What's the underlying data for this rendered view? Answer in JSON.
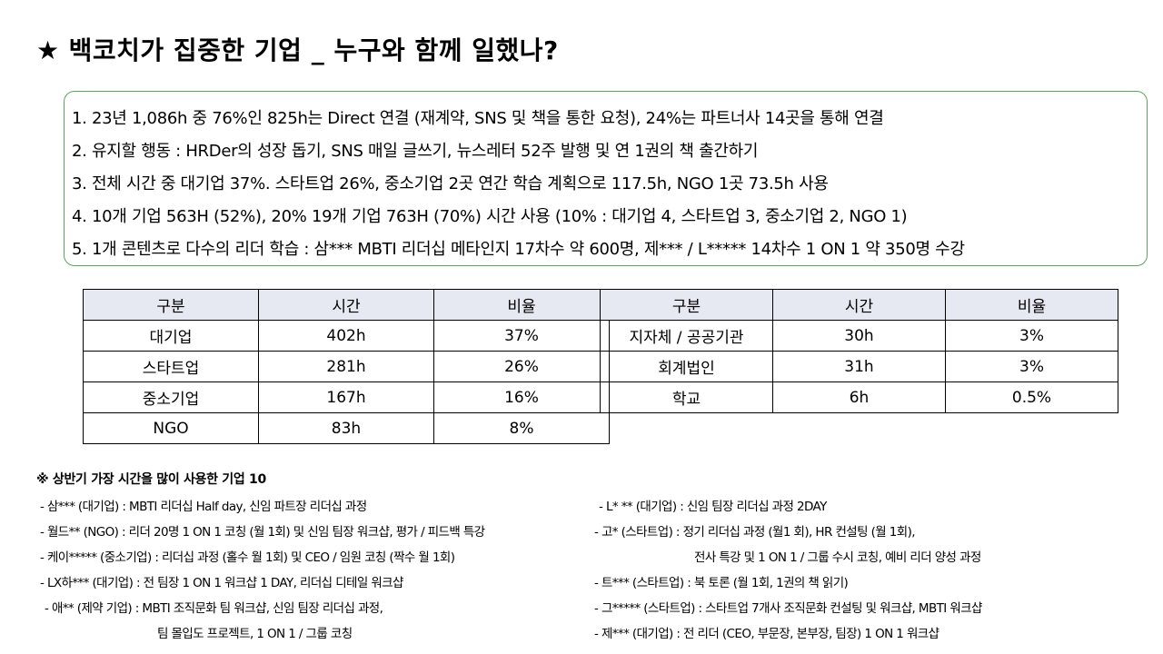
{
  "title": {
    "star": "★",
    "text": "백코치가 집중한 기업 _ 누구와 함께 일했나?"
  },
  "summary": {
    "lines": [
      "1. 23년 1,086h 중 76%인 825h는 Direct 연결 (재계약, SNS 및 책을 통한 요청), 24%는 파트너사 14곳을 통해 연결",
      "2. 유지할 행동 : HRDer의 성장 돕기, SNS 매일 글쓰기, 뉴스레터 52주 발행 및 연 1권의 책 출간하기",
      "3. 전체 시간 중 대기업 37%. 스타트업 26%, 중소기업 2곳 연간 학습 계획으로 117.5h, NGO 1곳 73.5h 사용",
      "4. 10개 기업 563H (52%), 20% 19개 기업 763H (70%) 시간 사용 (10% : 대기업 4, 스타트업 3, 중소기업 2, NGO 1)",
      "5. 1개 콘텐츠로 다수의 리더 학습 : 삼*** MBTI 리더십 메타인지 17차수 약 600명, 제*** / L***** 14차수 1 ON 1 약 350명 수강"
    ]
  },
  "table_left": {
    "headers": [
      "구분",
      "시간",
      "비율"
    ],
    "rows": [
      [
        "대기업",
        "402h",
        "37%"
      ],
      [
        "스타트업",
        "281h",
        "26%"
      ],
      [
        "중소기업",
        "167h",
        "16%"
      ],
      [
        "NGO",
        "83h",
        "8%"
      ]
    ]
  },
  "table_right": {
    "headers": [
      "구분",
      "시간",
      "비율"
    ],
    "rows": [
      [
        "지자체 / 공공기관",
        "30h",
        "3%"
      ],
      [
        "회계법인",
        "31h",
        "3%"
      ],
      [
        "학교",
        "6h",
        "0.5%"
      ]
    ]
  },
  "top10": {
    "title": "※ 상반기 가장 시간을 많이 사용한 기업 10",
    "left": [
      "- 삼*** (대기업) : MBTI 리더십 Half day, 신임 파트장 리더십 과정",
      "- 월드** (NGO) : 리더 20명 1 ON 1 코칭 (월 1회) 및 신임 팀장 워크샵, 평가 / 피드백 특강",
      "- 케이***** (중소기업) : 리더십 과정 (홀수 월 1회) 및 CEO / 임원 코칭 (짝수 월 1회)",
      "- LX하*** (대기업) : 전 팀장 1 ON 1 워크샵 1 DAY, 리더십 디테일 워크샵",
      "- 애** (제약 기업) : MBTI 조직문화 팀 워크샵, 신임 팀장 리더십 과정,",
      "팀 몰입도 프로젝트, 1 ON 1 / 그룹 코칭"
    ],
    "right": [
      "- L* ** (대기업) : 신임 팀장 리더십 과정 2DAY",
      "- 고* (스타트업) : 정기 리더십 과정 (월1 회), HR 컨설팅 (월 1회),",
      "전사 특강 및 1 ON 1 / 그룹 수시 코칭, 예비 리더 양성 과정",
      "- 트*** (스타트업) : 북 토론 (월 1회, 1권의 책 읽기)",
      "- 그***** (스타트업) : 스타트업 7개사 조직문화 컨설팅 및 워크샵, MBTI 워크샵",
      "- 제*** (대기업) : 전 리더 (CEO, 부문장, 본부장, 팀장) 1 ON 1 워크샵"
    ]
  }
}
